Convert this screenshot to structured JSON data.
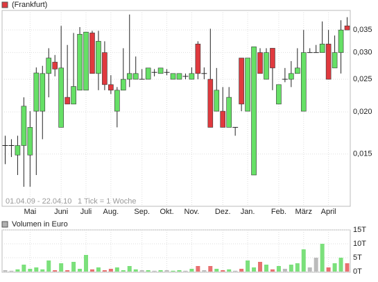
{
  "chart_data": [
    {
      "type": "candlestick",
      "log": true,
      "grid": true,
      "legend": "top-left",
      "footer": "01.04.09 - 22.04.10",
      "footer_note": "1 Tick = 1 Woche",
      "categories": [
        null,
        null,
        null,
        null,
        "Mai",
        null,
        null,
        null,
        null,
        "Juni",
        null,
        null,
        null,
        "Juli",
        null,
        null,
        null,
        "Aug.",
        null,
        null,
        null,
        null,
        "Sep.",
        null,
        null,
        null,
        "Okt.",
        null,
        null,
        null,
        "Nov.",
        null,
        null,
        null,
        null,
        "Dez.",
        null,
        null,
        null,
        "Jan.",
        null,
        null,
        null,
        null,
        "Feb.",
        null,
        null,
        null,
        "März",
        null,
        null,
        null,
        "April",
        null,
        null,
        null
      ],
      "ylim": [
        0.0105,
        0.04
      ],
      "yticks": [
        {
          "value": 0.015,
          "label": "0,015"
        },
        {
          "value": 0.02,
          "label": "0,020"
        },
        {
          "value": 0.025,
          "label": "0,025"
        },
        {
          "value": 0.03,
          "label": "0,030"
        },
        {
          "value": 0.035,
          "label": "0,035"
        }
      ],
      "series": [
        {
          "name": "(Frankfurt)",
          "color": "#e0393e",
          "up_color": "#66e066",
          "down_color": "#e0393e",
          "open": [
            0.0159,
            0.0159,
            0.0149,
            0.0159,
            0.0149,
            0.0201,
            0.0201,
            0.026,
            0.0281,
            0.018,
            0.0221,
            0.0211,
            0.0232,
            0.0232,
            0.0343,
            0.026,
            0.03,
            0.0241,
            0.0201,
            0.0232,
            0.025,
            0.025,
            0.025,
            0.025,
            0.0262,
            0.026,
            0.0262,
            0.025,
            0.025,
            0.0255,
            0.025,
            0.0318,
            0.026,
            0.025,
            0.0201,
            0.0201,
            0.018,
            0.018,
            0.0289,
            0.0201,
            0.013,
            0.03,
            0.025,
            0.0309,
            0.0211,
            0.025,
            0.025,
            0.026,
            0.0201,
            0.03,
            0.03,
            0.03,
            0.0318,
            0.027,
            0.03,
            0.036
          ],
          "close": [
            0.0159,
            0.0159,
            0.0159,
            0.0208,
            0.018,
            0.0261,
            0.026,
            0.0289,
            0.0268,
            0.027,
            0.0211,
            0.0238,
            0.034,
            0.0345,
            0.026,
            0.0324,
            0.0241,
            0.0232,
            0.0232,
            0.025,
            0.026,
            0.026,
            0.025,
            0.027,
            0.0262,
            0.027,
            0.0262,
            0.026,
            0.026,
            0.0255,
            0.026,
            0.026,
            0.026,
            0.018,
            0.0232,
            0.018,
            0.0221,
            0.018,
            0.0211,
            0.0289,
            0.0312,
            0.026,
            0.03,
            0.027,
            0.0241,
            0.025,
            0.026,
            0.027,
            0.03,
            0.03,
            0.03,
            0.0318,
            0.025,
            0.03,
            0.035,
            0.035
          ],
          "high": [
            0.017,
            0.0166,
            0.017,
            0.0221,
            0.0201,
            0.0271,
            0.0274,
            0.0309,
            0.0295,
            0.036,
            0.0316,
            0.0343,
            0.0357,
            0.0345,
            0.0348,
            0.0348,
            0.0324,
            0.0257,
            0.0237,
            0.0309,
            0.0389,
            0.0292,
            0.0268,
            0.027,
            0.0268,
            0.027,
            0.0268,
            0.026,
            0.026,
            0.026,
            0.0271,
            0.0324,
            0.0271,
            0.0353,
            0.027,
            0.0237,
            0.0237,
            0.018,
            0.0289,
            0.0289,
            0.0312,
            0.0309,
            0.0309,
            0.0309,
            0.0241,
            0.027,
            0.0283,
            0.0309,
            0.035,
            0.0309,
            0.0316,
            0.0371,
            0.035,
            0.0337,
            0.0374,
            0.0382
          ],
          "low": [
            0.014,
            0.0147,
            0.013,
            0.012,
            0.012,
            0.013,
            0.0166,
            0.0221,
            0.0255,
            0.018,
            0.0211,
            0.0211,
            0.0232,
            0.0232,
            0.026,
            0.0232,
            0.0232,
            0.0226,
            0.018,
            0.0232,
            0.0237,
            0.025,
            0.025,
            0.025,
            0.0255,
            0.026,
            0.0257,
            0.025,
            0.025,
            0.025,
            0.025,
            0.025,
            0.025,
            0.018,
            0.0201,
            0.018,
            0.018,
            0.017,
            0.0201,
            0.0201,
            0.013,
            0.026,
            0.025,
            0.0232,
            0.0211,
            0.0245,
            0.0237,
            0.026,
            0.0201,
            0.03,
            0.03,
            0.03,
            0.025,
            0.027,
            0.026,
            0.035
          ]
        }
      ]
    },
    {
      "type": "bar",
      "name": "Volumen in Euro",
      "color": "#b0b0b0",
      "grid": true,
      "up_color": "#7be07b",
      "down_color": "#e87070",
      "flat_color": "#bbbbbb",
      "ylim": [
        0,
        15
      ],
      "yticks": [
        {
          "value": 0,
          "label": "0T"
        },
        {
          "value": 5,
          "label": "5T"
        },
        {
          "value": 10,
          "label": "10T"
        },
        {
          "value": 15,
          "label": "15T"
        }
      ],
      "values": [
        0.5,
        0.3,
        0.8,
        2.5,
        1.0,
        1.5,
        0.8,
        4.0,
        0.5,
        3.0,
        0.5,
        3.5,
        1.0,
        6.0,
        0.8,
        1.5,
        0.5,
        1.0,
        1.5,
        0.5,
        2.0,
        0.8,
        0.5,
        0.5,
        0.3,
        0.5,
        0.5,
        0.3,
        0.5,
        0.3,
        1.0,
        2.0,
        0.5,
        2.0,
        1.0,
        0.5,
        0.8,
        0.3,
        1.0,
        4.0,
        1.5,
        3.5,
        2.5,
        0.8,
        2.0,
        1.0,
        2.5,
        3.0,
        8.0,
        1.5,
        5.0,
        10.0,
        1.5,
        3.0,
        5.0,
        3.0
      ]
    }
  ]
}
